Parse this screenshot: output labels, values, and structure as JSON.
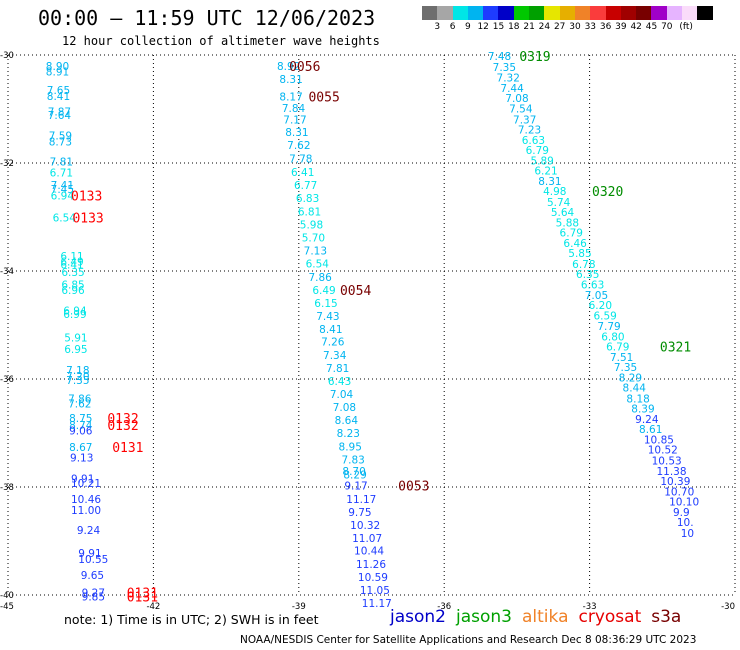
{
  "header": {
    "title": "00:00 — 11:59 UTC 12/06/2023",
    "subtitle": "12 hour collection of altimeter wave heights"
  },
  "colorbar": {
    "colors": [
      "#6e6e6e",
      "#a6a6a6",
      "#00e6e6",
      "#00b4f0",
      "#1e3cff",
      "#0000c8",
      "#00c800",
      "#00a000",
      "#e6e600",
      "#e6af00",
      "#f08228",
      "#fa3c3c",
      "#c80000",
      "#a00000",
      "#780000",
      "#a000c8",
      "#e6b4ff",
      "#fadcfa",
      "#000000"
    ],
    "labels": [
      "3",
      "6",
      "9",
      "12",
      "15",
      "18",
      "21",
      "24",
      "27",
      "30",
      "33",
      "36",
      "39",
      "42",
      "45",
      "70",
      "(ft)"
    ]
  },
  "map": {
    "lon_ticks": [
      "-45",
      "-42",
      "-39",
      "-36",
      "-33",
      "-30"
    ],
    "lat_ticks": [
      "-30",
      "-32",
      "-34",
      "-36",
      "-38",
      "-40"
    ],
    "lon_range": [
      -45,
      -30
    ],
    "lat_range": [
      -30,
      -40
    ],
    "grid": "dotted"
  },
  "tracks": [
    {
      "name": "track-west",
      "observations": [
        {
          "lon": -44.22,
          "lat": -30.2,
          "swh": "8.90",
          "color": "#00b4f0"
        },
        {
          "lon": -44.22,
          "lat": -30.31,
          "swh": "8.91",
          "color": "#00b4f0"
        },
        {
          "lon": -44.2,
          "lat": -30.65,
          "swh": "7.65",
          "color": "#00b4f0"
        },
        {
          "lon": -44.2,
          "lat": -30.76,
          "swh": "8.41",
          "color": "#00b4f0"
        },
        {
          "lon": -44.18,
          "lat": -31.05,
          "swh": "7.87",
          "color": "#00b4f0"
        },
        {
          "lon": -44.18,
          "lat": -31.11,
          "swh": "7.64",
          "color": "#00b4f0"
        },
        {
          "lon": -44.16,
          "lat": -31.49,
          "swh": "7.59",
          "color": "#00b4f0"
        },
        {
          "lon": -44.16,
          "lat": -31.6,
          "swh": "8.73",
          "color": "#00b4f0"
        },
        {
          "lon": -44.14,
          "lat": -31.97,
          "swh": "7.81",
          "color": "#00b4f0"
        },
        {
          "lon": -44.14,
          "lat": -32.18,
          "swh": "6.71",
          "color": "#00e6e6"
        },
        {
          "lon": -44.12,
          "lat": -32.41,
          "swh": "7.41",
          "color": "#00b4f0"
        },
        {
          "lon": -44.12,
          "lat": -32.48,
          "swh": "7.45",
          "color": "#00b4f0"
        },
        {
          "lon": -44.12,
          "lat": -32.6,
          "swh": "6.94",
          "color": "#00e6e6"
        },
        {
          "lon": -44.08,
          "lat": -33.01,
          "swh": "6.54",
          "color": "#00e6e6"
        },
        {
          "lon": -43.92,
          "lat": -33.72,
          "swh": "6.11",
          "color": "#00e6e6"
        },
        {
          "lon": -43.92,
          "lat": -33.82,
          "swh": "6.49",
          "color": "#00e6e6"
        },
        {
          "lon": -43.92,
          "lat": -33.88,
          "swh": "6.41",
          "color": "#00e6e6"
        },
        {
          "lon": -43.9,
          "lat": -34.02,
          "swh": "6.35",
          "color": "#00e6e6"
        },
        {
          "lon": -43.9,
          "lat": -34.25,
          "swh": "6.85",
          "color": "#00e6e6"
        },
        {
          "lon": -43.9,
          "lat": -34.35,
          "swh": "6.96",
          "color": "#00e6e6"
        },
        {
          "lon": -43.86,
          "lat": -34.73,
          "swh": "6.94",
          "color": "#00e6e6"
        },
        {
          "lon": -43.86,
          "lat": -34.8,
          "swh": "6.99",
          "color": "#00e6e6"
        },
        {
          "lon": -43.84,
          "lat": -35.23,
          "swh": "5.91",
          "color": "#00e6e6"
        },
        {
          "lon": -43.84,
          "lat": -35.44,
          "swh": "6.95",
          "color": "#00e6e6"
        },
        {
          "lon": -43.8,
          "lat": -35.83,
          "swh": "7.18",
          "color": "#00b4f0"
        },
        {
          "lon": -43.8,
          "lat": -35.94,
          "swh": "7.20",
          "color": "#00b4f0"
        },
        {
          "lon": -43.8,
          "lat": -36.02,
          "swh": "7.35",
          "color": "#00b4f0"
        },
        {
          "lon": -43.76,
          "lat": -36.36,
          "swh": "7.86",
          "color": "#00b4f0"
        },
        {
          "lon": -43.76,
          "lat": -36.45,
          "swh": "7.62",
          "color": "#00b4f0"
        },
        {
          "lon": -43.74,
          "lat": -36.72,
          "swh": "8.75",
          "color": "#00b4f0"
        },
        {
          "lon": -43.74,
          "lat": -36.85,
          "swh": "8.74",
          "color": "#00b4f0"
        },
        {
          "lon": -43.74,
          "lat": -36.95,
          "swh": "9.06",
          "color": "#1e3cff"
        },
        {
          "lon": -43.74,
          "lat": -37.26,
          "swh": "8.67",
          "color": "#00b4f0"
        },
        {
          "lon": -43.72,
          "lat": -37.45,
          "swh": "9.13",
          "color": "#1e3cff"
        },
        {
          "lon": -43.7,
          "lat": -37.84,
          "swh": "9.91",
          "color": "#1e3cff"
        },
        {
          "lon": -43.7,
          "lat": -37.93,
          "swh": "10.21",
          "color": "#1e3cff"
        },
        {
          "lon": -43.7,
          "lat": -38.22,
          "swh": "10.46",
          "color": "#1e3cff"
        },
        {
          "lon": -43.7,
          "lat": -38.43,
          "swh": "11.00",
          "color": "#1e3cff"
        },
        {
          "lon": -43.58,
          "lat": -38.8,
          "swh": "9.24",
          "color": "#1e3cff"
        },
        {
          "lon": -43.55,
          "lat": -39.22,
          "swh": "9.91",
          "color": "#1e3cff"
        },
        {
          "lon": -43.55,
          "lat": -39.33,
          "swh": "10.55",
          "color": "#1e3cff"
        },
        {
          "lon": -43.5,
          "lat": -39.63,
          "swh": "9.65",
          "color": "#1e3cff"
        },
        {
          "lon": -43.48,
          "lat": -39.95,
          "swh": "9.27",
          "color": "#1e3cff"
        },
        {
          "lon": -43.48,
          "lat": -40.03,
          "swh": "9.85",
          "color": "#1e3cff"
        }
      ]
    },
    {
      "name": "track-middle",
      "observations": [
        {
          "lon": -39.45,
          "lat": -30.2,
          "swh": "8.92",
          "color": "#00b4f0"
        },
        {
          "lon": -39.4,
          "lat": -30.44,
          "swh": "8.31",
          "color": "#00b4f0"
        },
        {
          "lon": -39.4,
          "lat": -30.77,
          "swh": "8.17",
          "color": "#00b4f0"
        },
        {
          "lon": -39.35,
          "lat": -30.98,
          "swh": "7.84",
          "color": "#00b4f0"
        },
        {
          "lon": -39.32,
          "lat": -31.19,
          "swh": "7.17",
          "color": "#00b4f0"
        },
        {
          "lon": -39.28,
          "lat": -31.43,
          "swh": "8.31",
          "color": "#00b4f0"
        },
        {
          "lon": -39.24,
          "lat": -31.67,
          "swh": "7.62",
          "color": "#00b4f0"
        },
        {
          "lon": -39.2,
          "lat": -31.92,
          "swh": "7.78",
          "color": "#00b4f0"
        },
        {
          "lon": -39.16,
          "lat": -32.17,
          "swh": "6.41",
          "color": "#00e6e6"
        },
        {
          "lon": -39.1,
          "lat": -32.41,
          "swh": "6.77",
          "color": "#00e6e6"
        },
        {
          "lon": -39.06,
          "lat": -32.65,
          "swh": "6.83",
          "color": "#00e6e6"
        },
        {
          "lon": -39.02,
          "lat": -32.9,
          "swh": "6.81",
          "color": "#00e6e6"
        },
        {
          "lon": -38.98,
          "lat": -33.14,
          "swh": "5.98",
          "color": "#00e6e6"
        },
        {
          "lon": -38.94,
          "lat": -33.38,
          "swh": "5.70",
          "color": "#00e6e6"
        },
        {
          "lon": -38.9,
          "lat": -33.62,
          "swh": "7.13",
          "color": "#00b4f0"
        },
        {
          "lon": -38.86,
          "lat": -33.86,
          "swh": "6.54",
          "color": "#00e6e6"
        },
        {
          "lon": -38.8,
          "lat": -34.11,
          "swh": "7.86",
          "color": "#00b4f0"
        },
        {
          "lon": -38.72,
          "lat": -34.35,
          "swh": "6.49",
          "color": "#00e6e6"
        },
        {
          "lon": -38.68,
          "lat": -34.59,
          "swh": "6.15",
          "color": "#00e6e6"
        },
        {
          "lon": -38.64,
          "lat": -34.83,
          "swh": "7.43",
          "color": "#00b4f0"
        },
        {
          "lon": -38.58,
          "lat": -35.07,
          "swh": "8.41",
          "color": "#00b4f0"
        },
        {
          "lon": -38.54,
          "lat": -35.31,
          "swh": "7.26",
          "color": "#00b4f0"
        },
        {
          "lon": -38.5,
          "lat": -35.56,
          "swh": "7.34",
          "color": "#00b4f0"
        },
        {
          "lon": -38.44,
          "lat": -35.8,
          "swh": "7.81",
          "color": "#00b4f0"
        },
        {
          "lon": -38.4,
          "lat": -36.04,
          "swh": "6.43",
          "color": "#00e6e6"
        },
        {
          "lon": -38.36,
          "lat": -36.28,
          "swh": "7.04",
          "color": "#00b4f0"
        },
        {
          "lon": -38.3,
          "lat": -36.52,
          "swh": "7.08",
          "color": "#00b4f0"
        },
        {
          "lon": -38.26,
          "lat": -36.76,
          "swh": "8.64",
          "color": "#00b4f0"
        },
        {
          "lon": -38.22,
          "lat": -37.0,
          "swh": "8.23",
          "color": "#00b4f0"
        },
        {
          "lon": -38.18,
          "lat": -37.25,
          "swh": "8.95",
          "color": "#00b4f0"
        },
        {
          "lon": -38.12,
          "lat": -37.49,
          "swh": "7.83",
          "color": "#00b4f0"
        },
        {
          "lon": -38.1,
          "lat": -37.7,
          "swh": "8.70",
          "color": "#00b4f0"
        },
        {
          "lon": -38.08,
          "lat": -37.77,
          "swh": "8.29",
          "color": "#00b4f0"
        },
        {
          "lon": -38.06,
          "lat": -37.97,
          "swh": "9.17",
          "color": "#1e3cff"
        },
        {
          "lon": -38.02,
          "lat": -38.22,
          "swh": "11.17",
          "color": "#1e3cff"
        },
        {
          "lon": -37.98,
          "lat": -38.46,
          "swh": "9.75",
          "color": "#1e3cff"
        },
        {
          "lon": -37.94,
          "lat": -38.7,
          "swh": "10.32",
          "color": "#1e3cff"
        },
        {
          "lon": -37.9,
          "lat": -38.94,
          "swh": "11.07",
          "color": "#1e3cff"
        },
        {
          "lon": -37.86,
          "lat": -39.18,
          "swh": "10.44",
          "color": "#1e3cff"
        },
        {
          "lon": -37.82,
          "lat": -39.43,
          "swh": "11.26",
          "color": "#1e3cff"
        },
        {
          "lon": -37.78,
          "lat": -39.67,
          "swh": "10.59",
          "color": "#1e3cff"
        },
        {
          "lon": -37.74,
          "lat": -39.91,
          "swh": "11.05",
          "color": "#1e3cff"
        },
        {
          "lon": -37.7,
          "lat": -40.15,
          "swh": "11.17",
          "color": "#1e3cff"
        }
      ]
    },
    {
      "name": "track-east",
      "observations": [
        {
          "lon": -35.1,
          "lat": -30.02,
          "swh": "7.48",
          "color": "#00b4f0"
        },
        {
          "lon": -35.0,
          "lat": -30.22,
          "swh": "7.35",
          "color": "#00b4f0"
        },
        {
          "lon": -34.92,
          "lat": -30.42,
          "swh": "7.32",
          "color": "#00b4f0"
        },
        {
          "lon": -34.84,
          "lat": -30.61,
          "swh": "7.44",
          "color": "#00b4f0"
        },
        {
          "lon": -34.74,
          "lat": -30.8,
          "swh": "7.08",
          "color": "#00b4f0"
        },
        {
          "lon": -34.66,
          "lat": -30.99,
          "swh": "7.54",
          "color": "#00b4f0"
        },
        {
          "lon": -34.58,
          "lat": -31.19,
          "swh": "7.37",
          "color": "#00b4f0"
        },
        {
          "lon": -34.48,
          "lat": -31.38,
          "swh": "7.23",
          "color": "#00b4f0"
        },
        {
          "lon": -34.4,
          "lat": -31.57,
          "swh": "6.63",
          "color": "#00e6e6"
        },
        {
          "lon": -34.32,
          "lat": -31.76,
          "swh": "6.79",
          "color": "#00e6e6"
        },
        {
          "lon": -34.22,
          "lat": -31.95,
          "swh": "5.89",
          "color": "#00e6e6"
        },
        {
          "lon": -34.14,
          "lat": -32.14,
          "swh": "6.21",
          "color": "#00e6e6"
        },
        {
          "lon": -34.06,
          "lat": -32.33,
          "swh": "8.31",
          "color": "#00b4f0"
        },
        {
          "lon": -33.96,
          "lat": -32.52,
          "swh": "4.98",
          "color": "#00e6e6"
        },
        {
          "lon": -33.88,
          "lat": -32.72,
          "swh": "5.74",
          "color": "#00e6e6"
        },
        {
          "lon": -33.8,
          "lat": -32.91,
          "swh": "5.64",
          "color": "#00e6e6"
        },
        {
          "lon": -33.7,
          "lat": -33.1,
          "swh": "5.88",
          "color": "#00e6e6"
        },
        {
          "lon": -33.62,
          "lat": -33.29,
          "swh": "6.79",
          "color": "#00e6e6"
        },
        {
          "lon": -33.54,
          "lat": -33.48,
          "swh": "6.46",
          "color": "#00e6e6"
        },
        {
          "lon": -33.44,
          "lat": -33.67,
          "swh": "5.85",
          "color": "#00e6e6"
        },
        {
          "lon": -33.36,
          "lat": -33.87,
          "swh": "6.78",
          "color": "#00e6e6"
        },
        {
          "lon": -33.28,
          "lat": -34.06,
          "swh": "6.35",
          "color": "#00e6e6"
        },
        {
          "lon": -33.18,
          "lat": -34.25,
          "swh": "6.63",
          "color": "#00e6e6"
        },
        {
          "lon": -33.1,
          "lat": -34.44,
          "swh": "7.05",
          "color": "#00b4f0"
        },
        {
          "lon": -33.02,
          "lat": -34.63,
          "swh": "6.20",
          "color": "#00e6e6"
        },
        {
          "lon": -32.92,
          "lat": -34.82,
          "swh": "6.59",
          "color": "#00e6e6"
        },
        {
          "lon": -32.84,
          "lat": -35.02,
          "swh": "7.79",
          "color": "#00b4f0"
        },
        {
          "lon": -32.76,
          "lat": -35.21,
          "swh": "6.80",
          "color": "#00e6e6"
        },
        {
          "lon": -32.66,
          "lat": -35.4,
          "swh": "6.79",
          "color": "#00e6e6"
        },
        {
          "lon": -32.58,
          "lat": -35.59,
          "swh": "7.51",
          "color": "#00b4f0"
        },
        {
          "lon": -32.5,
          "lat": -35.78,
          "swh": "7.35",
          "color": "#00b4f0"
        },
        {
          "lon": -32.4,
          "lat": -35.97,
          "swh": "8.29",
          "color": "#00b4f0"
        },
        {
          "lon": -32.32,
          "lat": -36.16,
          "swh": "8.44",
          "color": "#00b4f0"
        },
        {
          "lon": -32.24,
          "lat": -36.36,
          "swh": "8.18",
          "color": "#00b4f0"
        },
        {
          "lon": -32.14,
          "lat": -36.55,
          "swh": "8.39",
          "color": "#00b4f0"
        },
        {
          "lon": -32.06,
          "lat": -36.74,
          "swh": "9.24",
          "color": "#1e3cff"
        },
        {
          "lon": -31.98,
          "lat": -36.93,
          "swh": "8.61",
          "color": "#00b4f0"
        },
        {
          "lon": -31.88,
          "lat": -37.12,
          "swh": "10.85",
          "color": "#1e3cff"
        },
        {
          "lon": -31.8,
          "lat": -37.31,
          "swh": "10.52",
          "color": "#1e3cff"
        },
        {
          "lon": -31.72,
          "lat": -37.51,
          "swh": "10.53",
          "color": "#1e3cff"
        },
        {
          "lon": -31.62,
          "lat": -37.7,
          "swh": "11.38",
          "color": "#1e3cff"
        },
        {
          "lon": -31.54,
          "lat": -37.89,
          "swh": "10.39",
          "color": "#1e3cff"
        },
        {
          "lon": -31.46,
          "lat": -38.08,
          "swh": "10.70",
          "color": "#1e3cff"
        },
        {
          "lon": -31.36,
          "lat": -38.27,
          "swh": "10.10",
          "color": "#1e3cff"
        },
        {
          "lon": -31.28,
          "lat": -38.46,
          "swh": "9.9",
          "color": "#1e3cff"
        },
        {
          "lon": -31.2,
          "lat": -38.65,
          "swh": "10.",
          "color": "#1e3cff"
        },
        {
          "lon": -31.12,
          "lat": -38.85,
          "swh": "10",
          "color": "#1e3cff"
        }
      ]
    }
  ],
  "time_labels": [
    {
      "lon": -39.2,
      "lat": -30.2,
      "text": "0056",
      "color": "#780000"
    },
    {
      "lon": -38.8,
      "lat": -30.77,
      "text": "0055",
      "color": "#780000"
    },
    {
      "lon": -38.15,
      "lat": -34.35,
      "text": "0054",
      "color": "#780000"
    },
    {
      "lon": -36.95,
      "lat": -37.97,
      "text": "0053",
      "color": "#780000"
    },
    {
      "lon": -43.7,
      "lat": -32.6,
      "text": "0133",
      "color": "#ff0000"
    },
    {
      "lon": -43.67,
      "lat": -33.01,
      "text": "0133",
      "color": "#ff0000"
    },
    {
      "lon": -42.95,
      "lat": -36.72,
      "text": "0132",
      "color": "#ff0000"
    },
    {
      "lon": -42.95,
      "lat": -36.85,
      "text": "0132",
      "color": "#ff0000"
    },
    {
      "lon": -42.85,
      "lat": -37.26,
      "text": "0131",
      "color": "#ff0000"
    },
    {
      "lon": -42.55,
      "lat": -39.95,
      "text": "0131",
      "color": "#ff0000"
    },
    {
      "lon": -42.55,
      "lat": -40.03,
      "text": "0131",
      "color": "#ff0000"
    },
    {
      "lon": -34.45,
      "lat": -30.02,
      "text": "0319",
      "color": "#008c00"
    },
    {
      "lon": -32.95,
      "lat": -32.52,
      "text": "0320",
      "color": "#008c00"
    },
    {
      "lon": -31.55,
      "lat": -35.4,
      "text": "0321",
      "color": "#008c00"
    }
  ],
  "note": "note: 1) Time is in UTC; 2) SWH is in feet",
  "legend": [
    {
      "label": "jason2",
      "color": "#0000c8"
    },
    {
      "label": "jason3",
      "color": "#00a000"
    },
    {
      "label": "altika",
      "color": "#f08228"
    },
    {
      "label": "cryosat",
      "color": "#e60000"
    },
    {
      "label": "s3a",
      "color": "#780000"
    }
  ],
  "footer": "NOAA/NESDIS Center for Satellite Applications and Research    Dec  8 08:36:29 UTC 2023"
}
